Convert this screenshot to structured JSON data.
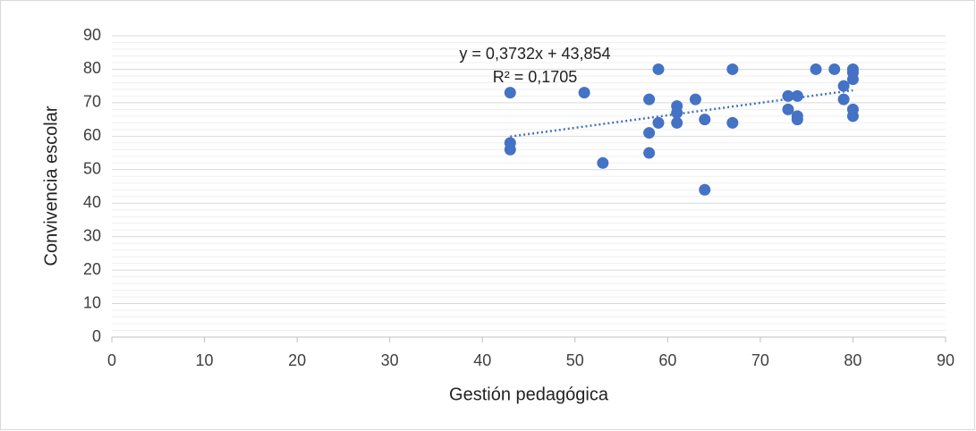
{
  "chart_data": {
    "type": "scatter",
    "x_label": "Gestión pedagógica",
    "y_label": "Convivencia escolar",
    "color": "#4472c4",
    "x": [
      43,
      43,
      43,
      51,
      53,
      59,
      58,
      58,
      58,
      59,
      61,
      61,
      61,
      63,
      64,
      64,
      67,
      67,
      73,
      73,
      74,
      74,
      74,
      76,
      78,
      79,
      79,
      80,
      80,
      80,
      80,
      80
    ],
    "values": [
      73,
      58,
      56,
      73,
      52,
      80,
      71,
      61,
      55,
      64,
      69,
      67,
      64,
      71,
      65,
      44,
      80,
      64,
      72,
      68,
      72,
      66,
      65,
      80,
      80,
      75,
      71,
      80,
      79,
      77,
      68,
      66
    ],
    "xlim": [
      0,
      90
    ],
    "xticks": [
      0,
      10,
      20,
      30,
      40,
      50,
      60,
      70,
      80,
      90
    ],
    "ylim": [
      0,
      90
    ],
    "yticks": [
      0,
      10,
      20,
      30,
      40,
      50,
      60,
      70,
      80,
      90
    ],
    "grid": true,
    "trendline": {
      "slope": 0.3732,
      "intercept": 43.854,
      "equation": "y = 0,3732x + 43,854",
      "r2": "R² = 0,1705"
    }
  }
}
